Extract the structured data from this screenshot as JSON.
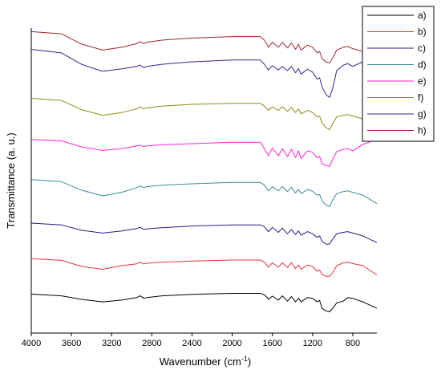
{
  "chart_data": {
    "type": "line",
    "xlabel": "Wavenumber (cm",
    "xlabel_sup": "-1",
    "xlabel_close": ")",
    "ylabel": "Transmittance (a. u.)",
    "x_reversed": true,
    "xlim": [
      4000,
      560
    ],
    "xticks": [
      4000,
      3600,
      3200,
      2800,
      2400,
      2000,
      1600,
      1200,
      800
    ],
    "ylim": [
      0,
      8.6
    ],
    "yticks": "none",
    "grid": false,
    "legend_position": "top-right",
    "peak_positions_cm-1": [
      3290,
      2918,
      2850,
      1640,
      1540,
      1450,
      1370,
      1315,
      1155,
      1105,
      1060,
      1030,
      895
    ],
    "series": [
      {
        "name": "a)",
        "color": "#000000",
        "offset": 0.6,
        "x": [
          4000,
          3700,
          3500,
          3290,
          3100,
          2950,
          2918,
          2880,
          2850,
          2700,
          2400,
          2000,
          1720,
          1680,
          1650,
          1640,
          1600,
          1540,
          1500,
          1450,
          1410,
          1370,
          1340,
          1315,
          1250,
          1200,
          1155,
          1130,
          1105,
          1080,
          1060,
          1030,
          1000,
          960,
          895,
          850,
          800,
          700,
          560
        ],
        "y": [
          0.5,
          0.45,
          0.35,
          0.28,
          0.33,
          0.4,
          0.45,
          0.38,
          0.4,
          0.45,
          0.49,
          0.52,
          0.52,
          0.48,
          0.4,
          0.35,
          0.44,
          0.33,
          0.45,
          0.3,
          0.43,
          0.28,
          0.38,
          0.28,
          0.4,
          0.38,
          0.28,
          0.32,
          0.1,
          0.05,
          0.02,
          0.0,
          0.1,
          0.25,
          0.3,
          0.4,
          0.38,
          0.28,
          0.1
        ]
      },
      {
        "name": "b)",
        "color": "#e8323c",
        "offset": 1.6,
        "x": [
          4000,
          3700,
          3500,
          3290,
          3100,
          2950,
          2918,
          2880,
          2850,
          2700,
          2400,
          2000,
          1720,
          1680,
          1650,
          1640,
          1600,
          1540,
          1500,
          1450,
          1410,
          1370,
          1340,
          1315,
          1250,
          1200,
          1155,
          1130,
          1105,
          1080,
          1060,
          1030,
          1000,
          960,
          895,
          850,
          800,
          700,
          560
        ],
        "y": [
          0.5,
          0.45,
          0.28,
          0.2,
          0.3,
          0.35,
          0.4,
          0.35,
          0.37,
          0.4,
          0.43,
          0.46,
          0.46,
          0.4,
          0.3,
          0.26,
          0.38,
          0.26,
          0.38,
          0.25,
          0.38,
          0.22,
          0.32,
          0.2,
          0.32,
          0.28,
          0.14,
          0.18,
          0.05,
          0.02,
          0.0,
          0.0,
          0.1,
          0.3,
          0.38,
          0.4,
          0.36,
          0.3,
          0.04
        ]
      },
      {
        "name": "c)",
        "color": "#1f1f8c",
        "offset": 2.5,
        "x": [
          4000,
          3700,
          3500,
          3290,
          3100,
          2950,
          2918,
          2880,
          2850,
          2700,
          2400,
          2000,
          1720,
          1680,
          1650,
          1640,
          1600,
          1540,
          1500,
          1450,
          1410,
          1370,
          1340,
          1315,
          1250,
          1200,
          1155,
          1130,
          1105,
          1080,
          1060,
          1030,
          1000,
          960,
          895,
          850,
          800,
          700,
          560
        ],
        "y": [
          0.6,
          0.55,
          0.4,
          0.32,
          0.38,
          0.45,
          0.48,
          0.42,
          0.44,
          0.47,
          0.52,
          0.55,
          0.55,
          0.5,
          0.4,
          0.36,
          0.48,
          0.34,
          0.46,
          0.3,
          0.42,
          0.28,
          0.38,
          0.26,
          0.36,
          0.3,
          0.2,
          0.24,
          0.08,
          0.04,
          0.0,
          0.02,
          0.15,
          0.3,
          0.34,
          0.36,
          0.32,
          0.24,
          0.05
        ]
      },
      {
        "name": "d)",
        "color": "#3b8a94",
        "offset": 3.55,
        "x": [
          4000,
          3700,
          3500,
          3290,
          3100,
          2950,
          2918,
          2880,
          2850,
          2700,
          2400,
          2000,
          1720,
          1680,
          1650,
          1640,
          1600,
          1540,
          1500,
          1450,
          1410,
          1370,
          1340,
          1315,
          1250,
          1200,
          1155,
          1130,
          1105,
          1080,
          1060,
          1030,
          1000,
          960,
          895,
          850,
          800,
          700,
          560
        ],
        "y": [
          0.78,
          0.72,
          0.48,
          0.32,
          0.42,
          0.55,
          0.6,
          0.55,
          0.58,
          0.62,
          0.66,
          0.7,
          0.7,
          0.62,
          0.5,
          0.46,
          0.58,
          0.46,
          0.58,
          0.44,
          0.56,
          0.4,
          0.5,
          0.38,
          0.5,
          0.45,
          0.34,
          0.36,
          0.18,
          0.1,
          0.05,
          0.02,
          0.2,
          0.38,
          0.44,
          0.46,
          0.42,
          0.34,
          0.1
        ]
      },
      {
        "name": "e)",
        "color": "#ff22dd",
        "offset": 4.7,
        "x": [
          4000,
          3700,
          3500,
          3290,
          3100,
          2950,
          2918,
          2880,
          2850,
          2700,
          2400,
          2000,
          1720,
          1680,
          1650,
          1640,
          1600,
          1540,
          1500,
          1450,
          1410,
          1370,
          1340,
          1315,
          1250,
          1200,
          1155,
          1130,
          1105,
          1080,
          1060,
          1030,
          1000,
          960,
          895,
          850,
          800,
          700,
          560
        ],
        "y": [
          0.76,
          0.72,
          0.55,
          0.45,
          0.5,
          0.58,
          0.6,
          0.56,
          0.58,
          0.61,
          0.64,
          0.68,
          0.68,
          0.5,
          0.36,
          0.3,
          0.52,
          0.3,
          0.5,
          0.28,
          0.48,
          0.25,
          0.44,
          0.22,
          0.44,
          0.4,
          0.24,
          0.28,
          0.08,
          0.04,
          0.02,
          0.0,
          0.2,
          0.42,
          0.48,
          0.5,
          0.44,
          0.62,
          0.76
        ]
      },
      {
        "name": "f)",
        "color": "#8c8a14",
        "offset": 5.7,
        "x": [
          4000,
          3700,
          3500,
          3290,
          3100,
          2950,
          2918,
          2880,
          2850,
          2700,
          2400,
          2000,
          1720,
          1680,
          1650,
          1640,
          1600,
          1540,
          1500,
          1450,
          1410,
          1370,
          1340,
          1315,
          1250,
          1200,
          1155,
          1130,
          1105,
          1080,
          1060,
          1030,
          1000,
          960,
          895,
          850,
          800,
          700,
          560
        ],
        "y": [
          0.92,
          0.86,
          0.6,
          0.44,
          0.52,
          0.62,
          0.68,
          0.62,
          0.65,
          0.7,
          0.75,
          0.78,
          0.78,
          0.7,
          0.62,
          0.58,
          0.68,
          0.58,
          0.68,
          0.55,
          0.66,
          0.52,
          0.62,
          0.48,
          0.58,
          0.52,
          0.4,
          0.42,
          0.22,
          0.14,
          0.08,
          0.04,
          0.2,
          0.4,
          0.44,
          0.46,
          0.42,
          0.34,
          0.2
        ]
      },
      {
        "name": "g)",
        "color": "#2a2a8e",
        "offset": 6.6,
        "x": [
          4000,
          3700,
          3500,
          3290,
          3100,
          2950,
          2918,
          2880,
          2850,
          2700,
          2400,
          2000,
          1720,
          1680,
          1650,
          1640,
          1600,
          1540,
          1500,
          1450,
          1410,
          1370,
          1340,
          1315,
          1250,
          1200,
          1155,
          1130,
          1105,
          1080,
          1060,
          1030,
          1000,
          960,
          895,
          850,
          800,
          700,
          560
        ],
        "y": [
          1.4,
          1.3,
          0.98,
          0.78,
          0.85,
          0.92,
          0.96,
          0.88,
          0.92,
          0.98,
          1.05,
          1.1,
          1.1,
          0.98,
          0.86,
          0.82,
          0.94,
          0.82,
          0.92,
          0.8,
          0.92,
          0.74,
          0.86,
          0.7,
          0.84,
          0.76,
          0.56,
          0.6,
          0.34,
          0.2,
          0.1,
          0.05,
          0.3,
          0.8,
          0.95,
          1.0,
          0.92,
          1.05,
          1.2
        ]
      },
      {
        "name": "h)",
        "color": "#9e2330",
        "offset": 7.6,
        "x": [
          4000,
          3700,
          3500,
          3290,
          3100,
          2950,
          2918,
          2880,
          2850,
          2700,
          2400,
          2000,
          1720,
          1680,
          1650,
          1640,
          1600,
          1540,
          1500,
          1450,
          1410,
          1370,
          1340,
          1315,
          1250,
          1200,
          1155,
          1130,
          1105,
          1080,
          1060,
          1030,
          1000,
          960,
          895,
          850,
          800,
          700,
          560
        ],
        "y": [
          0.9,
          0.84,
          0.55,
          0.38,
          0.46,
          0.56,
          0.62,
          0.56,
          0.6,
          0.66,
          0.72,
          0.76,
          0.76,
          0.66,
          0.52,
          0.46,
          0.6,
          0.46,
          0.6,
          0.44,
          0.58,
          0.4,
          0.54,
          0.38,
          0.52,
          0.46,
          0.3,
          0.34,
          0.14,
          0.08,
          0.04,
          0.02,
          0.16,
          0.38,
          0.46,
          0.48,
          0.42,
          0.34,
          0.18
        ]
      }
    ]
  }
}
